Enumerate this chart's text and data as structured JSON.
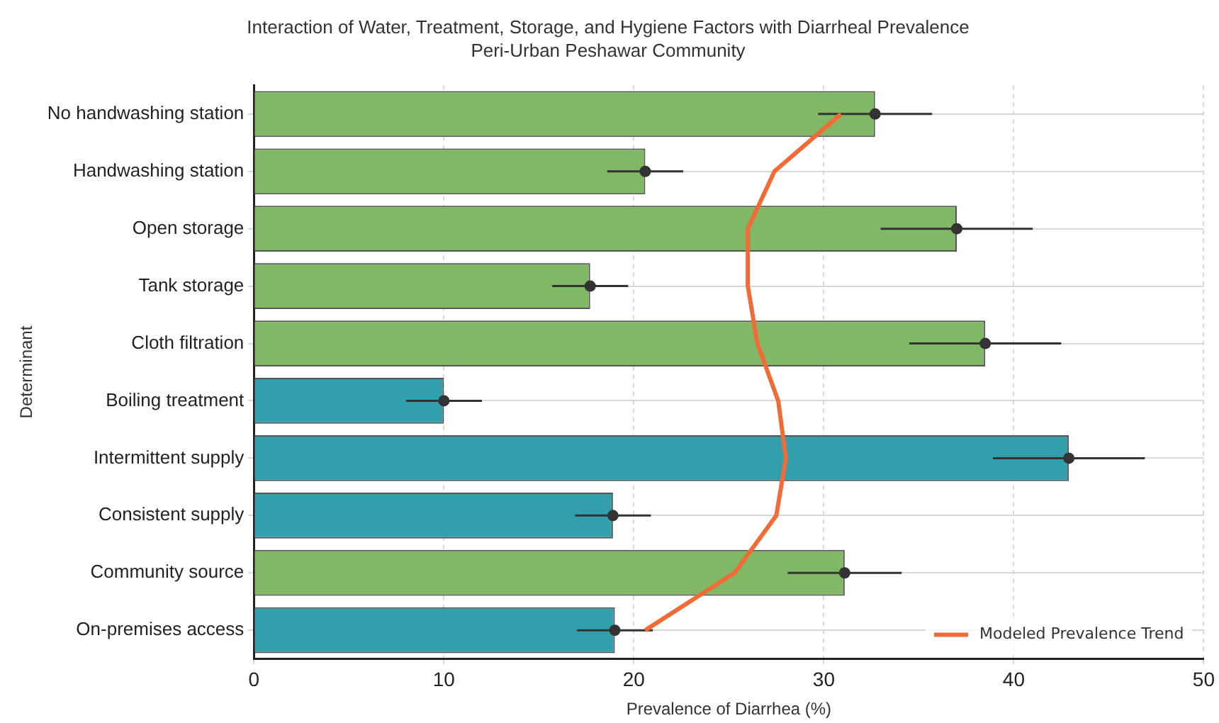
{
  "chart_data": {
    "type": "bar",
    "orientation": "horizontal",
    "title": "Interaction of Water, Treatment, Storage, and Hygiene Factors with Diarrheal Prevalence",
    "subtitle": "Peri-Urban Peshawar Community",
    "xlabel": "Prevalence of Diarrhea (%)",
    "ylabel": "Determinant",
    "categories": [
      "No handwashing station",
      "Handwashing station",
      "Open storage",
      "Tank storage",
      "Cloth filtration",
      "Boiling treatment",
      "Intermittent supply",
      "Consistent supply",
      "Community source",
      "On-premises access"
    ],
    "series": [
      {
        "values": [
          32.7,
          20.6,
          37,
          17.7,
          38.5,
          10,
          42.9,
          18.9,
          31.1,
          19
        ],
        "colors": [
          "#80b865",
          "#80b865",
          "#80b865",
          "#80b865",
          "#80b865",
          "#31a0ac",
          "#31a0ac",
          "#31a0ac",
          "#80b865",
          "#31a0ac"
        ]
      },
      {
        "type": "scatter",
        "x": [
          "No handwashing station",
          "Handwashing station",
          "Open storage",
          "Tank storage",
          "Cloth filtration",
          "Boiling treatment",
          "Intermittent supply",
          "Consistent supply",
          "Community source",
          "On-premises access"
        ],
        "values": [
          32.7,
          20.6,
          37,
          17.7,
          38.5,
          10,
          42.9,
          18.9,
          31.1,
          19
        ],
        "color": "#333333",
        "errors": [
          3,
          2,
          4,
          2,
          4,
          2,
          4,
          2,
          3,
          2
        ],
        "marker": "circle"
      },
      {
        "type": "line",
        "name": "Modeled Prevalence Trend",
        "color": "#f26a35",
        "values": [
          30.9,
          27.4,
          26,
          26,
          26.5,
          27.6,
          28,
          27.5,
          25.3,
          20.6
        ],
        "marker": "none",
        "line_style": "solid"
      }
    ],
    "xlim": [
      0,
      50
    ],
    "xticks": [
      0,
      10,
      20,
      30,
      40,
      50
    ],
    "grid": true,
    "legend": "bottom right"
  }
}
